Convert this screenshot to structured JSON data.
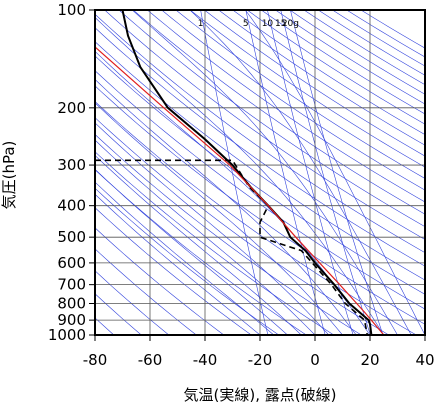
{
  "chart_data": {
    "type": "line",
    "xlabel": "気温(実線), 露点(破線)",
    "ylabel": "気圧(hPa)",
    "xlim": [
      -80,
      40
    ],
    "xticks": [
      -80,
      -60,
      -40,
      -20,
      0,
      20,
      40
    ],
    "ylim": [
      1000,
      100
    ],
    "yticks": [
      100,
      200,
      300,
      400,
      500,
      600,
      700,
      800,
      900,
      1000
    ],
    "log_y": true,
    "grid": true,
    "mixing_ratio_labels": [
      1,
      5,
      10,
      15,
      {
        "value": 20,
        "label": "20g"
      }
    ],
    "series": [
      {
        "color": "#000000",
        "dash": false,
        "width": 2,
        "x": [
          -70,
          -68,
          -63.5,
          -53.5,
          -40,
          -30,
          -23.5,
          -17,
          -11.5,
          -9,
          -3.5,
          0,
          7,
          12.5,
          19.5,
          20,
          20.5
        ],
        "y": [
          100,
          120,
          150,
          200,
          250,
          300,
          350,
          400,
          450,
          500,
          550,
          600,
          700,
          800,
          900,
          925,
          1000
        ]
      },
      {
        "color": "#000000",
        "dash": true,
        "width": 1.6,
        "x": [
          -80,
          -30,
          -24,
          -17,
          -20,
          -20,
          -5,
          -1,
          6,
          11,
          18,
          19
        ],
        "y": [
          290,
          290,
          350,
          400,
          450,
          500,
          550,
          600,
          700,
          800,
          900,
          1000
        ]
      },
      {
        "color": "#e02020",
        "dash": false,
        "width": 1.2,
        "x": [
          -80,
          -55,
          -31,
          -17,
          -7,
          9,
          18,
          25
        ],
        "y": [
          130,
          200,
          300,
          400,
          500,
          700,
          850,
          1000
        ]
      }
    ]
  }
}
